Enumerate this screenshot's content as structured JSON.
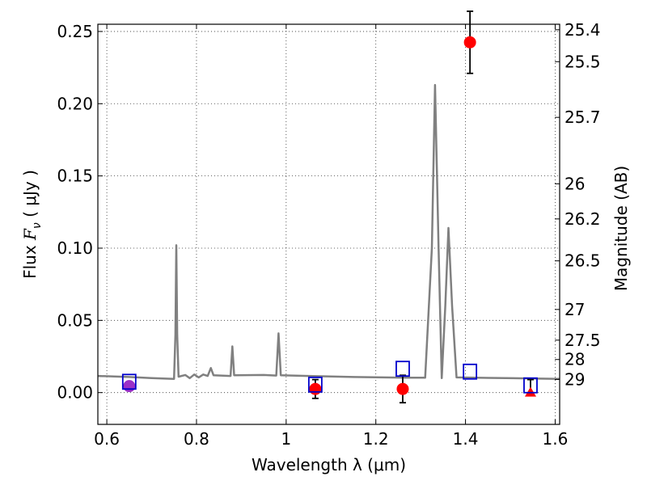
{
  "chart_data": {
    "type": "line",
    "xlabel": "Wavelength  λ (μm)",
    "ylabel_prefix": "Flux  ",
    "ylabel_symbol": "F",
    "ylabel_sub": "ν",
    "ylabel_units": "  ( μJy )",
    "ylabel_right": "Magnitude (AB)",
    "xlim": [
      0.58,
      1.61
    ],
    "ylim": [
      -0.022,
      0.255
    ],
    "grid": true,
    "x_ticks": [
      {
        "value": 0.6,
        "label": "0.6"
      },
      {
        "value": 0.8,
        "label": "0.8"
      },
      {
        "value": 1.0,
        "label": "1"
      },
      {
        "value": 1.2,
        "label": "1.2"
      },
      {
        "value": 1.4,
        "label": "1.4"
      },
      {
        "value": 1.6,
        "label": "1.6"
      }
    ],
    "y_ticks": [
      {
        "value": 0.0,
        "label": "0.00"
      },
      {
        "value": 0.05,
        "label": "0.05"
      },
      {
        "value": 0.1,
        "label": "0.10"
      },
      {
        "value": 0.15,
        "label": "0.15"
      },
      {
        "value": 0.2,
        "label": "0.20"
      },
      {
        "value": 0.25,
        "label": "0.25"
      }
    ],
    "right_ticks": [
      {
        "mag": 25.4,
        "label": "25.4"
      },
      {
        "mag": 25.5,
        "label": "25.5"
      },
      {
        "mag": 25.7,
        "label": "25.7"
      },
      {
        "mag": 26,
        "label": "26"
      },
      {
        "mag": 26.2,
        "label": "26.2"
      },
      {
        "mag": 26.5,
        "label": "26.5"
      },
      {
        "mag": 27,
        "label": "27"
      },
      {
        "mag": 27.5,
        "label": "27.5"
      },
      {
        "mag": 28,
        "label": "28"
      },
      {
        "mag": 29,
        "label": "29"
      }
    ],
    "model_spectrum": {
      "color": "#808080",
      "points": [
        [
          0.58,
          0.0115
        ],
        [
          0.65,
          0.0108
        ],
        [
          0.7,
          0.01
        ],
        [
          0.75,
          0.0095
        ],
        [
          0.753,
          0.04
        ],
        [
          0.755,
          0.102
        ],
        [
          0.757,
          0.04
        ],
        [
          0.76,
          0.011
        ],
        [
          0.775,
          0.0122
        ],
        [
          0.785,
          0.01
        ],
        [
          0.795,
          0.0125
        ],
        [
          0.805,
          0.0105
        ],
        [
          0.815,
          0.0125
        ],
        [
          0.825,
          0.0115
        ],
        [
          0.832,
          0.017
        ],
        [
          0.838,
          0.012
        ],
        [
          0.876,
          0.0115
        ],
        [
          0.88,
          0.032
        ],
        [
          0.884,
          0.012
        ],
        [
          0.95,
          0.0122
        ],
        [
          0.978,
          0.0118
        ],
        [
          0.983,
          0.041
        ],
        [
          0.988,
          0.012
        ],
        [
          1.05,
          0.0115
        ],
        [
          1.15,
          0.0108
        ],
        [
          1.25,
          0.0104
        ],
        [
          1.31,
          0.0103
        ],
        [
          1.325,
          0.1
        ],
        [
          1.332,
          0.213
        ],
        [
          1.34,
          0.1
        ],
        [
          1.347,
          0.01
        ],
        [
          1.355,
          0.06
        ],
        [
          1.362,
          0.114
        ],
        [
          1.37,
          0.06
        ],
        [
          1.38,
          0.0105
        ],
        [
          1.45,
          0.0102
        ],
        [
          1.55,
          0.0098
        ],
        [
          1.61,
          0.0095
        ]
      ]
    },
    "model_photometry": {
      "color": "#0000cc",
      "marker": "square",
      "points": [
        {
          "x": 0.65,
          "y": 0.0075
        },
        {
          "x": 1.065,
          "y": 0.0055
        },
        {
          "x": 1.26,
          "y": 0.0165
        },
        {
          "x": 1.41,
          "y": 0.0145
        },
        {
          "x": 1.545,
          "y": 0.005
        }
      ]
    },
    "observed": [
      {
        "x": 0.65,
        "y": 0.0045,
        "err": 0.0025,
        "color": "#9b30c8",
        "marker": "circle"
      },
      {
        "x": 1.065,
        "y": 0.0025,
        "err": 0.0065,
        "color": "#ff0000",
        "marker": "circle"
      },
      {
        "x": 1.26,
        "y": 0.0025,
        "err": 0.0095,
        "color": "#ff0000",
        "marker": "circle"
      },
      {
        "x": 1.41,
        "y": 0.2425,
        "err": 0.0215,
        "color": "#ff0000",
        "marker": "circle"
      },
      {
        "x": 1.545,
        "y": 0.0,
        "err_top": 0.009,
        "color": "#ff0000",
        "marker": "triangle"
      }
    ]
  }
}
